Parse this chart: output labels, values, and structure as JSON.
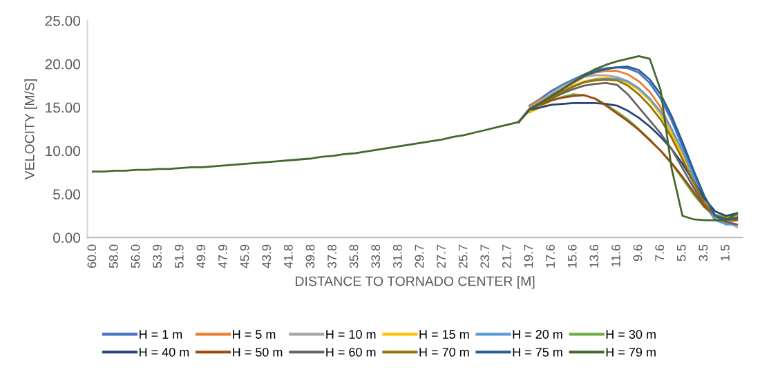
{
  "chart_data": {
    "type": "line",
    "xlabel": "DISTANCE TO TORNADO CENTER [M]",
    "ylabel": "VELOCITY [M/S]",
    "categories": [
      "60.0",
      null,
      "58.0",
      null,
      "56.0",
      null,
      "53.9",
      null,
      "51.9",
      null,
      "49.9",
      null,
      "47.9",
      null,
      "45.9",
      null,
      "43.9",
      null,
      "41.8",
      null,
      "39.8",
      null,
      "37.8",
      null,
      "35.8",
      null,
      "33.8",
      null,
      "31.8",
      null,
      "29.7",
      null,
      "27.7",
      null,
      "25.7",
      null,
      "23.7",
      null,
      "21.7",
      null,
      "19.7",
      null,
      "17.6",
      null,
      "15.6",
      null,
      "13.6",
      null,
      "11.6",
      null,
      "9.6",
      null,
      "7.6",
      null,
      "5.5",
      null,
      "3.5",
      null,
      "1.5",
      null
    ],
    "ylim": [
      0,
      25
    ],
    "yticks": [
      {
        "value": 0,
        "label": "0.00"
      },
      {
        "value": 5,
        "label": "5.00"
      },
      {
        "value": 10,
        "label": "10.00"
      },
      {
        "value": 15,
        "label": "15.00"
      },
      {
        "value": 20,
        "label": "20.00"
      },
      {
        "value": 25,
        "label": "25.00"
      }
    ],
    "grid": false,
    "legend": "bottom",
    "marker": "none",
    "line_style": "solid",
    "series": [
      {
        "name": "H = 1 m",
        "color": "#4472c4",
        "values": [
          null,
          null,
          null,
          null,
          null,
          null,
          null,
          null,
          null,
          null,
          null,
          null,
          null,
          null,
          null,
          null,
          null,
          null,
          null,
          null,
          null,
          null,
          null,
          null,
          null,
          null,
          null,
          null,
          null,
          null,
          null,
          null,
          null,
          null,
          null,
          null,
          null,
          null,
          null,
          null,
          15.2,
          16.0,
          16.9,
          17.6,
          18.2,
          18.8,
          19.3,
          19.5,
          19.6,
          19.5,
          19.0,
          17.8,
          16.0,
          13.5,
          10.5,
          7.5,
          4.5,
          2.2,
          1.8,
          2.2
        ]
      },
      {
        "name": "H = 5 m",
        "color": "#ed7d31",
        "values": [
          null,
          null,
          null,
          null,
          null,
          null,
          null,
          null,
          null,
          null,
          null,
          null,
          null,
          null,
          null,
          null,
          null,
          null,
          null,
          null,
          null,
          null,
          null,
          null,
          null,
          null,
          null,
          null,
          null,
          null,
          null,
          null,
          null,
          null,
          null,
          null,
          null,
          null,
          null,
          null,
          15.1,
          15.9,
          16.5,
          17.0,
          17.8,
          18.5,
          19.0,
          19.2,
          19.2,
          18.8,
          18.0,
          16.8,
          15.0,
          12.5,
          9.5,
          6.5,
          3.8,
          2.0,
          1.7,
          2.0
        ]
      },
      {
        "name": "H = 10 m",
        "color": "#a5a5a5",
        "values": [
          null,
          null,
          null,
          null,
          null,
          null,
          null,
          null,
          null,
          null,
          null,
          null,
          null,
          null,
          null,
          null,
          null,
          null,
          null,
          null,
          null,
          null,
          null,
          null,
          null,
          null,
          null,
          null,
          null,
          null,
          null,
          null,
          null,
          null,
          null,
          null,
          null,
          null,
          null,
          13.3,
          14.9,
          15.7,
          16.6,
          17.4,
          18.0,
          18.5,
          18.7,
          18.7,
          18.5,
          18.0,
          17.2,
          16.0,
          14.2,
          11.8,
          9.0,
          6.2,
          3.5,
          2.3,
          1.9,
          1.2
        ]
      },
      {
        "name": "H = 15 m",
        "color": "#ffc000",
        "values": [
          null,
          null,
          null,
          null,
          null,
          null,
          null,
          null,
          null,
          null,
          null,
          null,
          null,
          null,
          null,
          null,
          null,
          null,
          null,
          null,
          null,
          null,
          null,
          null,
          null,
          null,
          null,
          null,
          null,
          null,
          null,
          null,
          null,
          null,
          null,
          null,
          null,
          null,
          null,
          null,
          14.4,
          15.0,
          15.8,
          16.8,
          17.5,
          18.0,
          18.3,
          18.4,
          18.3,
          17.8,
          17.0,
          15.8,
          14.2,
          12.0,
          9.5,
          6.8,
          4.2,
          2.5,
          2.2,
          2.5
        ]
      },
      {
        "name": "H = 20 m",
        "color": "#5b9bd5",
        "values": [
          null,
          null,
          null,
          null,
          null,
          null,
          null,
          null,
          null,
          null,
          null,
          null,
          null,
          null,
          null,
          null,
          null,
          null,
          null,
          null,
          null,
          null,
          null,
          null,
          null,
          null,
          null,
          null,
          null,
          null,
          null,
          null,
          null,
          null,
          null,
          null,
          null,
          null,
          null,
          13.3,
          14.8,
          15.4,
          16.1,
          16.8,
          17.4,
          17.9,
          18.2,
          18.3,
          18.3,
          18.0,
          17.2,
          16.0,
          14.5,
          12.5,
          10.0,
          7.0,
          4.0,
          2.0,
          1.5,
          1.5
        ]
      },
      {
        "name": "H = 30 m",
        "color": "#70ad47",
        "values": [
          null,
          null,
          null,
          null,
          null,
          null,
          null,
          null,
          null,
          null,
          null,
          null,
          null,
          null,
          null,
          null,
          null,
          null,
          null,
          null,
          null,
          null,
          null,
          null,
          null,
          null,
          null,
          null,
          null,
          null,
          null,
          null,
          null,
          null,
          null,
          null,
          null,
          null,
          null,
          13.3,
          14.8,
          15.3,
          15.8,
          16.2,
          16.5,
          16.4,
          16.0,
          15.3,
          14.5,
          13.6,
          12.5,
          11.3,
          10.0,
          8.5,
          6.8,
          5.0,
          3.5,
          2.6,
          2.4,
          2.6
        ]
      },
      {
        "name": "H = 40 m",
        "color": "#264478",
        "values": [
          null,
          null,
          null,
          null,
          null,
          null,
          null,
          null,
          null,
          null,
          null,
          null,
          null,
          null,
          null,
          null,
          null,
          null,
          null,
          null,
          null,
          null,
          null,
          null,
          null,
          null,
          null,
          null,
          null,
          null,
          null,
          null,
          null,
          null,
          null,
          null,
          null,
          null,
          null,
          13.3,
          14.7,
          15.0,
          15.3,
          15.4,
          15.5,
          15.5,
          15.5,
          15.4,
          15.2,
          14.6,
          13.8,
          12.8,
          11.6,
          10.2,
          8.5,
          6.5,
          4.5,
          3.0,
          2.5,
          2.8
        ]
      },
      {
        "name": "H = 50 m",
        "color": "#9e480e",
        "values": [
          null,
          null,
          null,
          null,
          null,
          null,
          null,
          null,
          null,
          null,
          null,
          null,
          null,
          null,
          null,
          null,
          null,
          null,
          null,
          null,
          null,
          null,
          null,
          null,
          null,
          null,
          null,
          null,
          null,
          null,
          null,
          null,
          null,
          null,
          null,
          null,
          null,
          null,
          null,
          13.3,
          14.8,
          15.3,
          15.8,
          16.1,
          16.3,
          16.4,
          16.0,
          15.2,
          14.3,
          13.4,
          12.4,
          11.2,
          10.0,
          8.6,
          7.0,
          5.3,
          3.6,
          2.5,
          2.2,
          2.0
        ]
      },
      {
        "name": "H = 60 m",
        "color": "#636363",
        "values": [
          null,
          null,
          null,
          null,
          null,
          null,
          null,
          null,
          null,
          null,
          null,
          null,
          null,
          null,
          null,
          null,
          null,
          null,
          null,
          null,
          null,
          null,
          null,
          null,
          null,
          null,
          null,
          null,
          null,
          null,
          null,
          null,
          null,
          null,
          null,
          null,
          null,
          null,
          null,
          13.3,
          14.8,
          15.4,
          16.0,
          16.6,
          17.1,
          17.5,
          17.7,
          17.8,
          17.6,
          16.5,
          15.0,
          13.5,
          12.0,
          10.2,
          8.0,
          5.8,
          3.8,
          2.5,
          1.8,
          1.5
        ]
      },
      {
        "name": "H = 70 m",
        "color": "#997300",
        "values": [
          null,
          null,
          null,
          null,
          null,
          null,
          null,
          null,
          null,
          null,
          null,
          null,
          null,
          null,
          null,
          null,
          null,
          null,
          null,
          null,
          null,
          null,
          null,
          null,
          null,
          null,
          null,
          null,
          null,
          null,
          null,
          null,
          null,
          null,
          null,
          null,
          null,
          null,
          null,
          13.3,
          14.8,
          15.4,
          16.1,
          16.8,
          17.4,
          17.9,
          18.1,
          18.2,
          18.1,
          17.5,
          16.5,
          15.2,
          13.6,
          11.5,
          9.0,
          6.5,
          4.0,
          2.5,
          2.0,
          2.3
        ]
      },
      {
        "name": "H = 75 m",
        "color": "#255e91",
        "values": [
          null,
          null,
          null,
          null,
          null,
          null,
          null,
          null,
          null,
          null,
          null,
          null,
          null,
          null,
          null,
          null,
          null,
          null,
          null,
          null,
          null,
          null,
          null,
          null,
          null,
          null,
          null,
          null,
          null,
          null,
          null,
          null,
          null,
          null,
          null,
          null,
          null,
          null,
          null,
          13.3,
          14.8,
          15.5,
          16.3,
          17.1,
          17.9,
          18.6,
          19.1,
          19.4,
          19.6,
          19.7,
          19.3,
          18.2,
          16.5,
          14.0,
          11.0,
          7.8,
          4.8,
          2.5,
          2.0,
          2.3
        ]
      },
      {
        "name": "H = 79 m",
        "color": "#43682b",
        "values": [
          7.6,
          7.6,
          7.7,
          7.7,
          7.8,
          7.8,
          7.9,
          7.9,
          8.0,
          8.1,
          8.1,
          8.2,
          8.3,
          8.4,
          8.5,
          8.6,
          8.7,
          8.8,
          8.9,
          9.0,
          9.1,
          9.3,
          9.4,
          9.6,
          9.7,
          9.9,
          10.1,
          10.3,
          10.5,
          10.7,
          10.9,
          11.1,
          11.3,
          11.6,
          11.8,
          12.1,
          12.4,
          12.7,
          13.0,
          13.3,
          14.8,
          15.5,
          16.3,
          17.1,
          17.9,
          18.7,
          19.4,
          19.9,
          20.3,
          20.6,
          20.9,
          20.6,
          17.0,
          8.0,
          2.5,
          2.1,
          2.0,
          2.0,
          2.0,
          2.8
        ]
      }
    ]
  }
}
